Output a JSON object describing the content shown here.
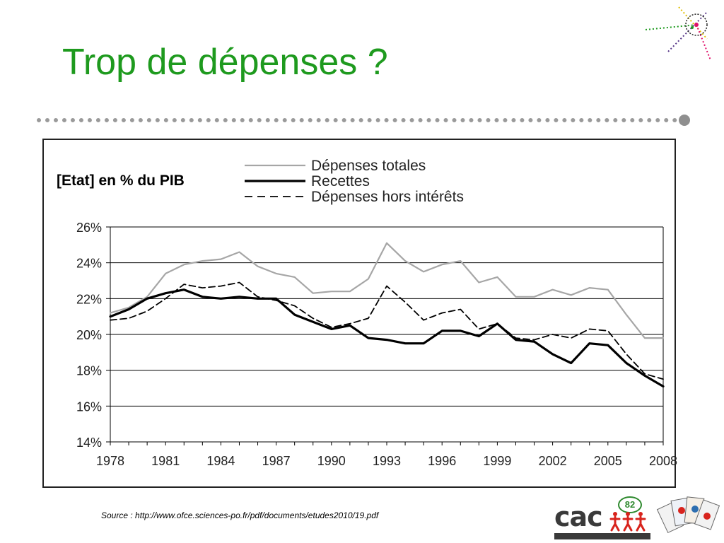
{
  "slide": {
    "title": "Trop de dépenses ?",
    "subtitle": "[Etat] en % du PIB",
    "source": "Source : http://www.ofce.sciences-po.fr/pdf/documents/etudes2010/19.pdf"
  },
  "logo": {
    "text": "cac",
    "badge": "82"
  },
  "colors": {
    "title": "#1e9a1e",
    "series_totales": "#a6a6a6",
    "series_recettes": "#000000",
    "series_hors_interets": "#000000",
    "grid": "#000000"
  },
  "chart_data": {
    "type": "line",
    "title": "",
    "xlabel": "",
    "ylabel": "",
    "ylim": [
      14,
      26
    ],
    "y_ticks": [
      "14%",
      "16%",
      "18%",
      "20%",
      "22%",
      "24%",
      "26%"
    ],
    "x_tick_labels": [
      "1978",
      "1981",
      "1984",
      "1987",
      "1990",
      "1993",
      "1996",
      "1999",
      "2002",
      "2005",
      "2008"
    ],
    "grid": "horizontal",
    "legend": "top",
    "x": [
      1978,
      1979,
      1980,
      1981,
      1982,
      1983,
      1984,
      1985,
      1986,
      1987,
      1988,
      1989,
      1990,
      1991,
      1992,
      1993,
      1994,
      1995,
      1996,
      1997,
      1998,
      1999,
      2000,
      2001,
      2002,
      2003,
      2004,
      2005,
      2006,
      2007,
      2008
    ],
    "series": [
      {
        "name": "Dépenses totales",
        "style": "solid-gray",
        "values": [
          21.2,
          21.5,
          22.1,
          23.4,
          23.9,
          24.1,
          24.2,
          24.6,
          23.8,
          23.4,
          23.2,
          22.3,
          22.4,
          22.4,
          23.1,
          25.1,
          24.1,
          23.5,
          23.9,
          24.1,
          22.9,
          23.2,
          22.1,
          22.1,
          22.5,
          22.2,
          22.6,
          22.5,
          21.1,
          19.8,
          19.8
        ]
      },
      {
        "name": "Recettes",
        "style": "solid-black-thick",
        "values": [
          21.0,
          21.4,
          22.0,
          22.3,
          22.5,
          22.1,
          22.0,
          22.1,
          22.0,
          22.0,
          21.1,
          20.7,
          20.3,
          20.5,
          19.8,
          19.7,
          19.5,
          19.5,
          20.2,
          20.2,
          19.9,
          20.6,
          19.7,
          19.6,
          18.9,
          18.4,
          19.5,
          19.4,
          18.4,
          17.7,
          17.1
        ]
      },
      {
        "name": "Dépenses hors intérêts",
        "style": "dashed-black",
        "values": [
          20.8,
          20.9,
          21.3,
          22.0,
          22.8,
          22.6,
          22.7,
          22.9,
          22.1,
          21.9,
          21.6,
          20.9,
          20.4,
          20.6,
          20.9,
          22.7,
          21.8,
          20.8,
          21.2,
          21.4,
          20.3,
          20.6,
          19.8,
          19.7,
          20.0,
          19.8,
          20.3,
          20.2,
          18.9,
          17.8,
          17.5
        ]
      }
    ]
  }
}
